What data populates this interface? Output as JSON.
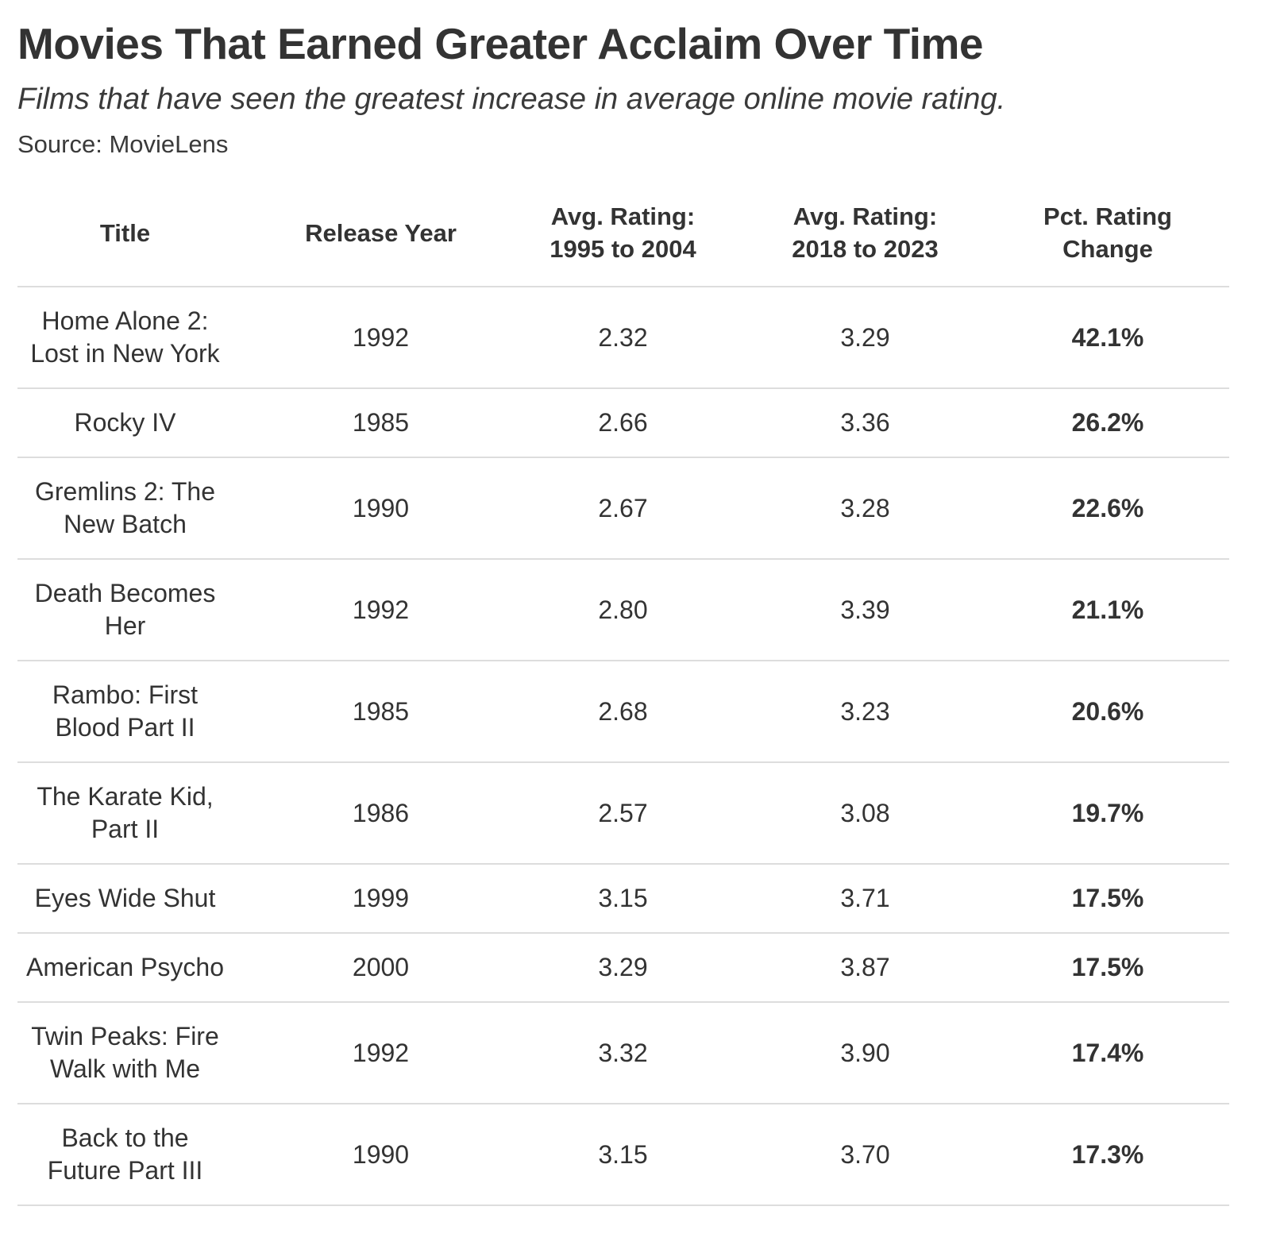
{
  "title": "Movies That Earned Greater Acclaim Over Time",
  "subtitle": "Films that have seen the greatest increase in average online movie rating.",
  "source": "Source: MovieLens",
  "columns": {
    "title": "Title",
    "release_year": "Release Year",
    "avg_1995_2004_line1": "Avg. Rating:",
    "avg_1995_2004_line2": "1995 to 2004",
    "avg_2018_2023_line1": "Avg. Rating:",
    "avg_2018_2023_line2": "2018 to 2023",
    "pct_change_line1": "Pct. Rating",
    "pct_change_line2": "Change"
  },
  "chart_data": {
    "type": "table",
    "title": "Movies That Earned Greater Acclaim Over Time",
    "subtitle": "Films that have seen the greatest increase in average online movie rating.",
    "source": "Source: MovieLens",
    "columns": [
      "Title",
      "Release Year",
      "Avg. Rating: 1995 to 2004",
      "Avg. Rating: 2018 to 2023",
      "Pct. Rating Change"
    ],
    "rows": [
      {
        "title_line1": "Home Alone 2:",
        "title_line2": "Lost in New York",
        "release_year": "1992",
        "avg_1995_2004": "2.32",
        "avg_2018_2023": "3.29",
        "pct_change": "42.1%"
      },
      {
        "title_line1": "Rocky IV",
        "title_line2": "",
        "release_year": "1985",
        "avg_1995_2004": "2.66",
        "avg_2018_2023": "3.36",
        "pct_change": "26.2%"
      },
      {
        "title_line1": "Gremlins 2: The",
        "title_line2": "New Batch",
        "release_year": "1990",
        "avg_1995_2004": "2.67",
        "avg_2018_2023": "3.28",
        "pct_change": "22.6%"
      },
      {
        "title_line1": "Death Becomes",
        "title_line2": "Her",
        "release_year": "1992",
        "avg_1995_2004": "2.80",
        "avg_2018_2023": "3.39",
        "pct_change": "21.1%"
      },
      {
        "title_line1": "Rambo: First",
        "title_line2": "Blood Part II",
        "release_year": "1985",
        "avg_1995_2004": "2.68",
        "avg_2018_2023": "3.23",
        "pct_change": "20.6%"
      },
      {
        "title_line1": "The Karate Kid,",
        "title_line2": "Part II",
        "release_year": "1986",
        "avg_1995_2004": "2.57",
        "avg_2018_2023": "3.08",
        "pct_change": "19.7%"
      },
      {
        "title_line1": "Eyes Wide Shut",
        "title_line2": "",
        "release_year": "1999",
        "avg_1995_2004": "3.15",
        "avg_2018_2023": "3.71",
        "pct_change": "17.5%"
      },
      {
        "title_line1": "American Psycho",
        "title_line2": "",
        "release_year": "2000",
        "avg_1995_2004": "3.29",
        "avg_2018_2023": "3.87",
        "pct_change": "17.5%"
      },
      {
        "title_line1": "Twin Peaks: Fire",
        "title_line2": "Walk with Me",
        "release_year": "1992",
        "avg_1995_2004": "3.32",
        "avg_2018_2023": "3.90",
        "pct_change": "17.4%"
      },
      {
        "title_line1": "Back to the",
        "title_line2": "Future Part III",
        "release_year": "1990",
        "avg_1995_2004": "3.15",
        "avg_2018_2023": "3.70",
        "pct_change": "17.3%"
      }
    ]
  }
}
